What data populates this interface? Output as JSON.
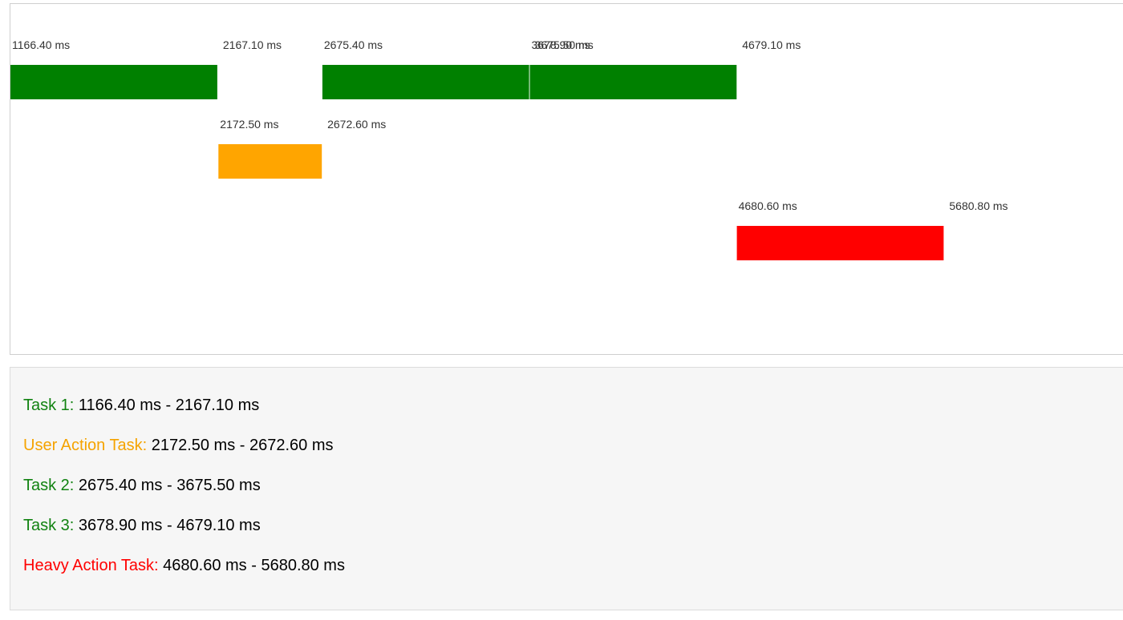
{
  "chart_data": {
    "type": "timeline",
    "unit": "ms",
    "xlim": [
      1166.4,
      5680.8
    ],
    "colors": {
      "green": "#008000",
      "orange": "#FFA500",
      "red": "#FF0000"
    },
    "tasks": [
      {
        "name": "Task 1",
        "start": 1166.4,
        "end": 2167.1,
        "row": 0,
        "color": "green",
        "start_label": "1166.40 ms",
        "end_label": "2167.10 ms"
      },
      {
        "name": "User Action Task",
        "start": 2172.5,
        "end": 2672.6,
        "row": 1,
        "color": "orange",
        "start_label": "2172.50 ms",
        "end_label": "2672.60 ms"
      },
      {
        "name": "Task 2",
        "start": 2675.4,
        "end": 3675.5,
        "row": 0,
        "color": "green",
        "start_label": "2675.40 ms",
        "end_label": "3675.50 ms"
      },
      {
        "name": "Task 3",
        "start": 3678.9,
        "end": 4679.1,
        "row": 0,
        "color": "green",
        "start_label": "3678.90 ms",
        "end_label": "4679.10 ms"
      },
      {
        "name": "Heavy Action Task",
        "start": 4680.6,
        "end": 5680.8,
        "row": 2,
        "color": "red",
        "start_label": "4680.60 ms",
        "end_label": "5680.80 ms"
      }
    ]
  },
  "log": [
    {
      "name": "Task 1:",
      "color": "green",
      "range": " 1166.40 ms - 2167.10 ms"
    },
    {
      "name": "User Action Task:",
      "color": "orange",
      "range": " 2172.50 ms - 2672.60 ms"
    },
    {
      "name": "Task 2:",
      "color": "green",
      "range": " 2675.40 ms - 3675.50 ms"
    },
    {
      "name": "Task 3:",
      "color": "green",
      "range": " 3678.90 ms - 4679.10 ms"
    },
    {
      "name": "Heavy Action Task:",
      "color": "red",
      "range": " 4680.60 ms - 5680.80 ms"
    }
  ]
}
